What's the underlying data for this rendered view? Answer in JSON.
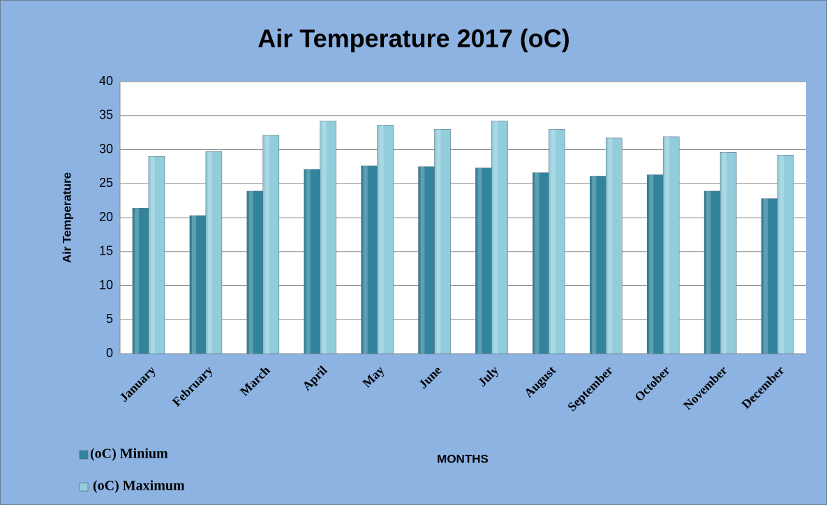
{
  "chart_data": {
    "type": "bar",
    "title": "Air Temperature 2017 (oC)",
    "y_label": "Air Temperature",
    "x_label": "MONTHS",
    "categories": [
      "January",
      "February",
      "March",
      "April",
      "May",
      "June",
      "July",
      "August",
      "September",
      "October",
      "November",
      "December"
    ],
    "series": [
      {
        "name": "(oC) Minium",
        "color": "#31849b",
        "values": [
          21.4,
          20.3,
          23.9,
          27.1,
          27.6,
          27.5,
          27.3,
          26.6,
          26.1,
          26.3,
          23.9,
          22.8
        ]
      },
      {
        "name": "(oC) Maximum",
        "color": "#92cddc",
        "values": [
          29.0,
          29.7,
          32.1,
          34.2,
          33.6,
          33.0,
          34.2,
          33.0,
          31.7,
          31.9,
          29.6,
          29.2
        ]
      }
    ],
    "ylim": [
      0,
      40
    ],
    "yticks": [
      0,
      5,
      10,
      15,
      20,
      25,
      30,
      35,
      40
    ],
    "grid": true
  }
}
